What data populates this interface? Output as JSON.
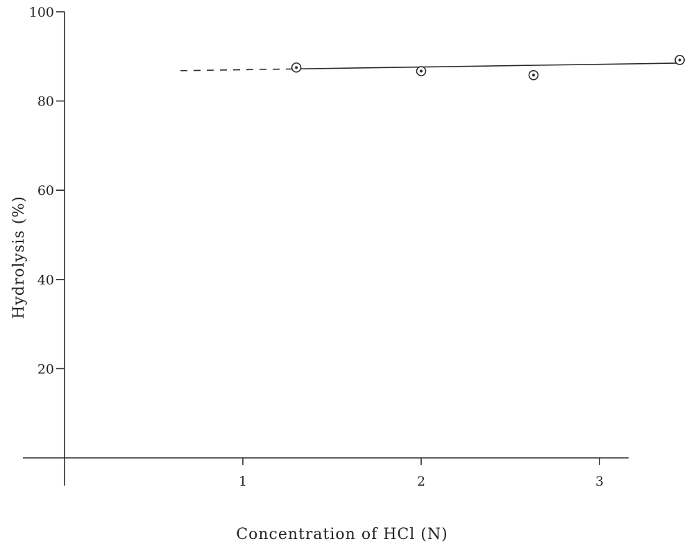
{
  "chart_data": {
    "type": "scatter",
    "title": "",
    "xlabel": "Concentration of HCl (N)",
    "ylabel": "Hydrolysis (%)",
    "xlim": [
      -0.2,
      3.2
    ],
    "ylim": [
      -10,
      100
    ],
    "x_ticks": [
      1,
      2,
      3
    ],
    "x_tick_labels": [
      "1",
      "2",
      "3"
    ],
    "y_ticks": [
      20,
      40,
      60,
      80,
      100
    ],
    "y_tick_labels": [
      "20",
      "40",
      "60",
      "80",
      "100"
    ],
    "grid": false,
    "series": [
      {
        "marker": "circled-dot",
        "x": [
          1.3,
          2.0,
          2.63,
          3.45
        ],
        "y": [
          87.5,
          86.7,
          85.8,
          89.2
        ]
      }
    ],
    "fit_line": {
      "x": [
        1.3,
        3.45
      ],
      "y": [
        87.2,
        88.5
      ],
      "extrapolated_x": [
        0.65,
        1.3
      ],
      "extrapolated_y": [
        86.8,
        87.2
      ],
      "extrapolated_style": "dashed"
    },
    "colors": {
      "ink": "#2a2a2a",
      "background": "#ffffff"
    }
  }
}
